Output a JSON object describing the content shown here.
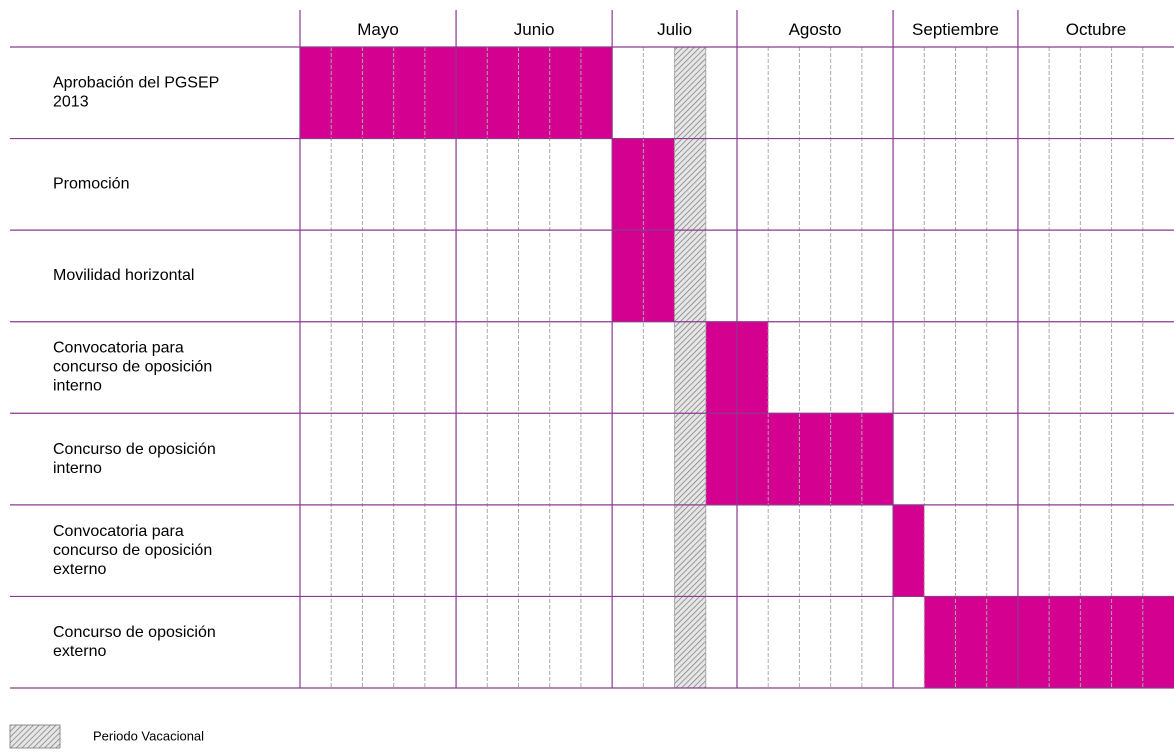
{
  "chart_data": {
    "type": "gantt",
    "months": [
      {
        "name": "Mayo",
        "weeks": 5
      },
      {
        "name": "Junio",
        "weeks": 5
      },
      {
        "name": "Julio",
        "weeks": 4
      },
      {
        "name": "Agosto",
        "weeks": 5
      },
      {
        "name": "Septiembre",
        "weeks": 4
      },
      {
        "name": "Octubre",
        "weeks": 5
      }
    ],
    "tasks": [
      {
        "label": [
          "Aprobación del PGSEP",
          "2013"
        ],
        "start": 0,
        "weeks": 10
      },
      {
        "label": [
          "Promoción"
        ],
        "start": 10,
        "weeks": 2
      },
      {
        "label": [
          "Movilidad horizontal"
        ],
        "start": 10,
        "weeks": 2
      },
      {
        "label": [
          "Convocatoria para",
          "concurso de oposición",
          "interno"
        ],
        "start": 13,
        "weeks": 2
      },
      {
        "label": [
          "Concurso de oposición",
          "interno"
        ],
        "start": 13,
        "weeks": 6
      },
      {
        "label": [
          "Convocatoria para",
          "concurso de oposición",
          "externo"
        ],
        "start": 19,
        "weeks": 1
      },
      {
        "label": [
          "Concurso de oposición",
          "externo"
        ],
        "start": 20,
        "weeks": 8
      }
    ],
    "vacation": {
      "label": "Periodo Vacacional",
      "start": 12,
      "weeks": 1
    },
    "color": "#d4008f"
  }
}
